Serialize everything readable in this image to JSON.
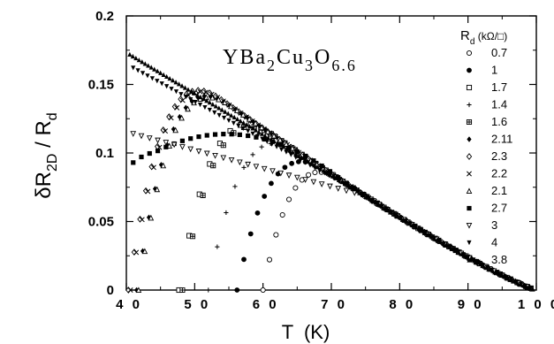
{
  "chart_data": {
    "type": "scatter",
    "title": "",
    "annotation": {
      "base": [
        "Y",
        "Ba",
        "Cu",
        "O"
      ],
      "subs": [
        "2",
        "3",
        "6.6"
      ]
    },
    "xlabel": "T  (K)",
    "ylabel": "δR",
    "ylabel_sub": "2D",
    "ylabel_rest": " / R",
    "ylabel_sub2": "d",
    "xlim": [
      40,
      100
    ],
    "ylim": [
      0,
      0.2
    ],
    "xticks": [
      "4 0",
      "5 0",
      "6 0",
      "7 0",
      "8 0",
      "9 0",
      "1 0 0"
    ],
    "yticks": [
      "0",
      "0.05",
      "0.1",
      "0.15",
      "0.2"
    ],
    "legend": {
      "position": "top-right",
      "title": "R",
      "title_sub": "d",
      "title_unit": " (kΩ/□)"
    },
    "series": [
      {
        "name": "0.7",
        "marker": "circle-open",
        "onset": 60.0,
        "ds": 0.95
      },
      {
        "name": "1",
        "marker": "circle-filled",
        "onset": 56.2,
        "ds": 1.0
      },
      {
        "name": "1.7",
        "marker": "square-open",
        "onset": 47.7,
        "ds": 1.5
      },
      {
        "name": "1.4",
        "marker": "plus",
        "onset": 52.0,
        "ds": 1.3
      },
      {
        "name": "1.6",
        "marker": "square-cross",
        "onset": 48.2,
        "ds": 1.5
      },
      {
        "name": "2.11",
        "marker": "diamond-filled",
        "onset": 41.5,
        "ds": 0.9,
        "peak": [
          52,
          0.076
        ]
      },
      {
        "name": "2.3",
        "marker": "diamond-open",
        "onset": 40.3,
        "ds": 0.85,
        "peak": [
          48,
          0.085
        ]
      },
      {
        "name": "2.2",
        "marker": "x",
        "onset": 40.6,
        "ds": 0.85
      },
      {
        "name": "2.1",
        "marker": "triangle-open",
        "onset": 41.8,
        "ds": 0.9
      },
      {
        "name": "2.7",
        "marker": "square-filled",
        "start": [
          41,
          0.093
        ],
        "peak": [
          44,
          0.1
        ],
        "ds": 1.2
      },
      {
        "name": "3",
        "marker": "triangle-down-open",
        "start": [
          41,
          0.114
        ],
        "ds": 1.2
      },
      {
        "name": "4",
        "marker": "triangle-down-filled",
        "start": [
          41,
          0.162
        ],
        "ds": 0.7
      },
      {
        "name": "3.8",
        "marker": "triangle-filled",
        "start": [
          40.5,
          0.172
        ],
        "ds": 0.45
      }
    ]
  }
}
